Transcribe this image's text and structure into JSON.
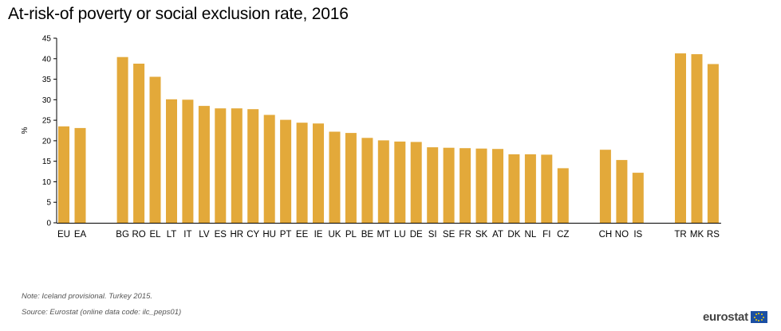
{
  "title": "At-risk-of poverty or social exclusion rate, 2016",
  "notes": {
    "note": "Note: Iceland provisional. Turkey 2015.",
    "source": "Source: Eurostat (online data code: ilc_peps01)"
  },
  "logo": {
    "text": "eurostat"
  },
  "colors": {
    "bar": "#e3a93a",
    "axis": "#000000"
  },
  "chart_data": {
    "type": "bar",
    "title": "At-risk-of poverty or social exclusion rate, 2016",
    "xlabel": "",
    "ylabel": "%",
    "ylim": [
      0,
      45
    ],
    "yticks": [
      0,
      5,
      10,
      15,
      20,
      25,
      30,
      35,
      40,
      45
    ],
    "grid": false,
    "groups": [
      {
        "categories": [
          "EU",
          "EA"
        ],
        "values": [
          23.5,
          23.1
        ]
      },
      {
        "categories": [
          "BG",
          "RO",
          "EL",
          "LT",
          "IT",
          "LV",
          "ES",
          "HR",
          "CY",
          "HU",
          "PT",
          "EE",
          "IE",
          "UK",
          "PL",
          "BE",
          "MT",
          "LU",
          "DE",
          "SI",
          "SE",
          "FR",
          "SK",
          "AT",
          "DK",
          "NL",
          "FI",
          "CZ"
        ],
        "values": [
          40.4,
          38.8,
          35.6,
          30.1,
          30.0,
          28.5,
          27.9,
          27.9,
          27.7,
          26.3,
          25.1,
          24.4,
          24.2,
          22.2,
          21.9,
          20.7,
          20.1,
          19.8,
          19.7,
          18.4,
          18.3,
          18.2,
          18.1,
          18.0,
          16.7,
          16.7,
          16.6,
          13.3
        ]
      },
      {
        "categories": [
          "CH",
          "NO",
          "IS"
        ],
        "values": [
          17.8,
          15.3,
          12.2
        ]
      },
      {
        "categories": [
          "TR",
          "MK",
          "RS"
        ],
        "values": [
          41.3,
          41.1,
          38.7
        ]
      }
    ]
  }
}
